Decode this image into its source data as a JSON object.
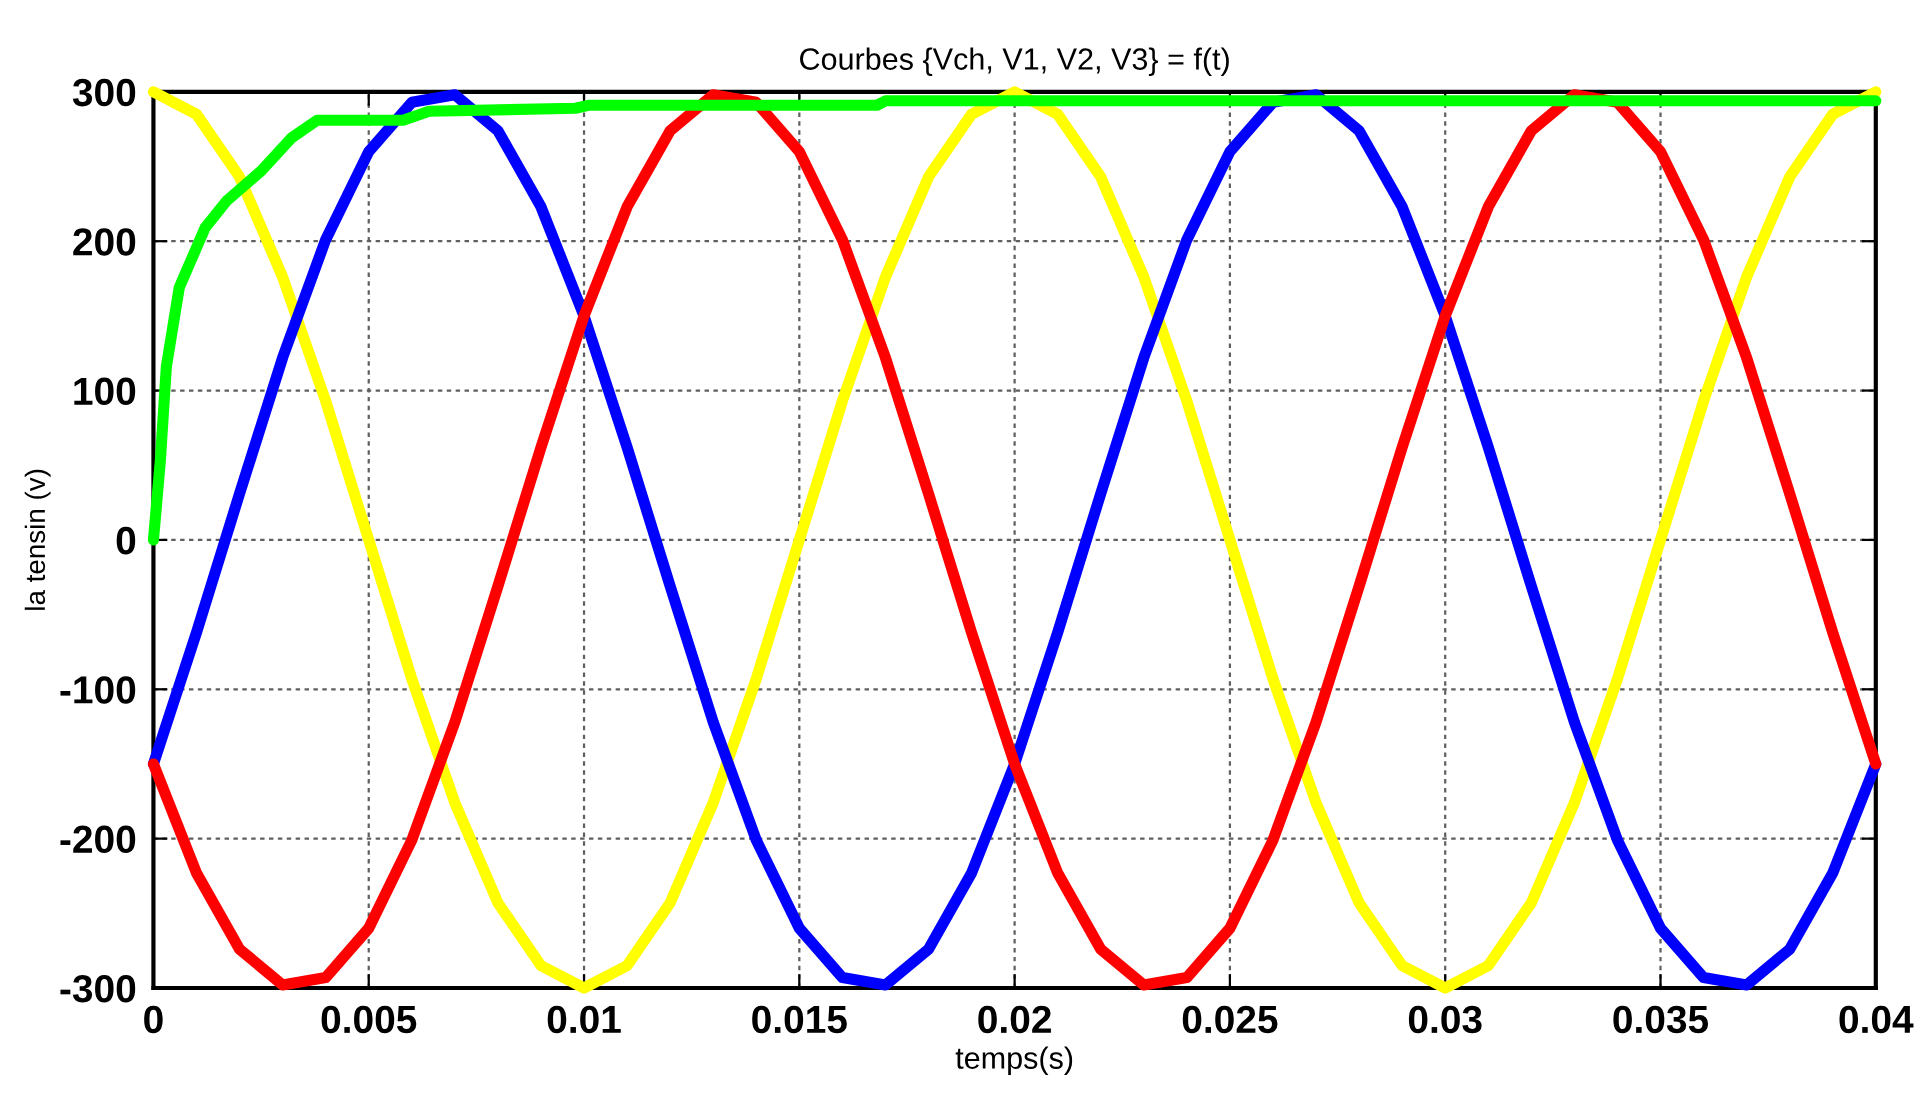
{
  "chart_data": {
    "type": "line",
    "title": "Courbes {Vch, V1, V2, V3} = f(t)",
    "xlabel": "temps(s)",
    "ylabel": "la tensin (v)",
    "x": [
      0,
      0.001,
      0.002,
      0.003,
      0.004,
      0.005,
      0.006,
      0.007,
      0.008,
      0.009,
      0.01,
      0.011,
      0.012,
      0.013,
      0.014,
      0.015,
      0.016,
      0.017,
      0.018,
      0.019,
      0.02,
      0.021,
      0.022,
      0.023,
      0.024,
      0.025,
      0.026,
      0.027,
      0.028,
      0.029,
      0.03,
      0.031,
      0.032,
      0.033,
      0.034,
      0.035,
      0.036,
      0.037,
      0.038,
      0.039,
      0.04
    ],
    "series": [
      {
        "color": "#ffff00",
        "values": [
          300,
          285,
          243,
          176,
          93,
          0,
          -93,
          -176,
          -243,
          -285,
          -300,
          -285,
          -243,
          -176,
          -93,
          0,
          93,
          176,
          243,
          285,
          300,
          285,
          243,
          176,
          93,
          0,
          -93,
          -176,
          -243,
          -285,
          -300,
          -285,
          -243,
          -176,
          -93,
          0,
          93,
          176,
          243,
          285,
          300
        ]
      },
      {
        "color": "#0000ff",
        "values": [
          -150,
          -62,
          31,
          122,
          201,
          260,
          293,
          298,
          274,
          223,
          150,
          62,
          -31,
          -122,
          -201,
          -260,
          -293,
          -298,
          -274,
          -223,
          -150,
          -62,
          31,
          122,
          201,
          260,
          293,
          298,
          274,
          223,
          150,
          62,
          -31,
          -122,
          -201,
          -260,
          -293,
          -298,
          -274,
          -223,
          -150
        ]
      },
      {
        "color": "#ff0000",
        "values": [
          -150,
          -223,
          -274,
          -298,
          -293,
          -260,
          -201,
          -122,
          -31,
          62,
          150,
          223,
          274,
          298,
          293,
          260,
          201,
          122,
          31,
          -62,
          -150,
          -223,
          -274,
          -298,
          -293,
          -260,
          -201,
          -122,
          -31,
          62,
          150,
          223,
          274,
          298,
          293,
          260,
          201,
          122,
          31,
          -62,
          -150
        ]
      },
      {
        "color": "#00ff00",
        "x": [
          0,
          0.00016,
          0.0003,
          0.0006,
          0.0012,
          0.0017,
          0.0025,
          0.0032,
          0.0038,
          0.0058,
          0.0064,
          0.0098,
          0.0101,
          0.0168,
          0.017,
          0.04
        ],
        "values": [
          0,
          53,
          116,
          169,
          209,
          227,
          247,
          269,
          281,
          281,
          287,
          289,
          291,
          291,
          294,
          294
        ]
      }
    ],
    "xlim": [
      0,
      0.04
    ],
    "xticks": [
      0,
      0.005,
      0.01,
      0.015,
      0.02,
      0.025,
      0.03,
      0.035,
      0.04
    ],
    "ylim": [
      -300,
      300
    ],
    "yticks": [
      {
        "value": -300,
        "label": "-300"
      },
      {
        "value": -200,
        "label": "-200"
      },
      {
        "value": -100,
        "label": "-100"
      },
      0,
      100,
      200,
      300
    ],
    "grid": true,
    "line_style": "solid",
    "marker": "none"
  }
}
